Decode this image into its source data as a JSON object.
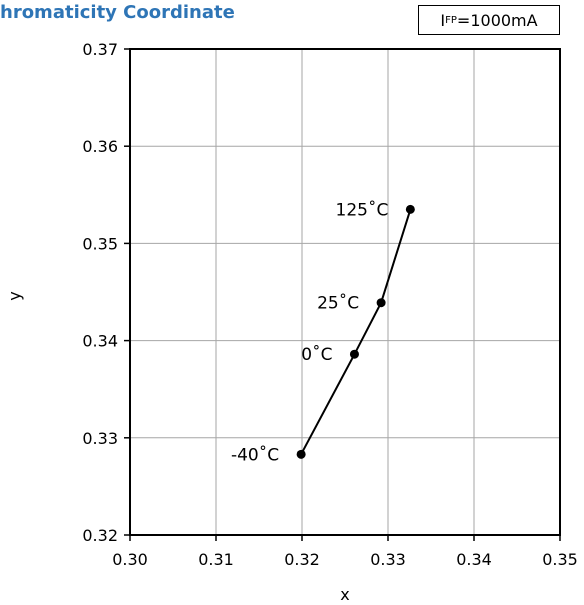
{
  "header": {
    "title": "hromaticity Coordinate",
    "condition_symbol": "I",
    "condition_subscript": "FP",
    "condition_value": "=1000mA"
  },
  "chart_data": {
    "type": "line",
    "title": "hromaticity Coordinate",
    "xlabel": "x",
    "ylabel": "y",
    "xlim": [
      0.3,
      0.35
    ],
    "ylim": [
      0.32,
      0.37
    ],
    "xticks": [
      "0.30",
      "0.31",
      "0.32",
      "0.33",
      "0.34",
      "0.35"
    ],
    "yticks": [
      "0.32",
      "0.33",
      "0.34",
      "0.35",
      "0.36",
      "0.37"
    ],
    "grid": true,
    "legend": "none",
    "series": [
      {
        "color": "#000000",
        "points": [
          {
            "x": 0.3199,
            "y": 0.3283,
            "label": "-40˚C"
          },
          {
            "x": 0.3261,
            "y": 0.3386,
            "label": "0˚C"
          },
          {
            "x": 0.3292,
            "y": 0.3439,
            "label": "25˚C"
          },
          {
            "x": 0.3326,
            "y": 0.3535,
            "label": "125˚C"
          }
        ]
      }
    ]
  }
}
